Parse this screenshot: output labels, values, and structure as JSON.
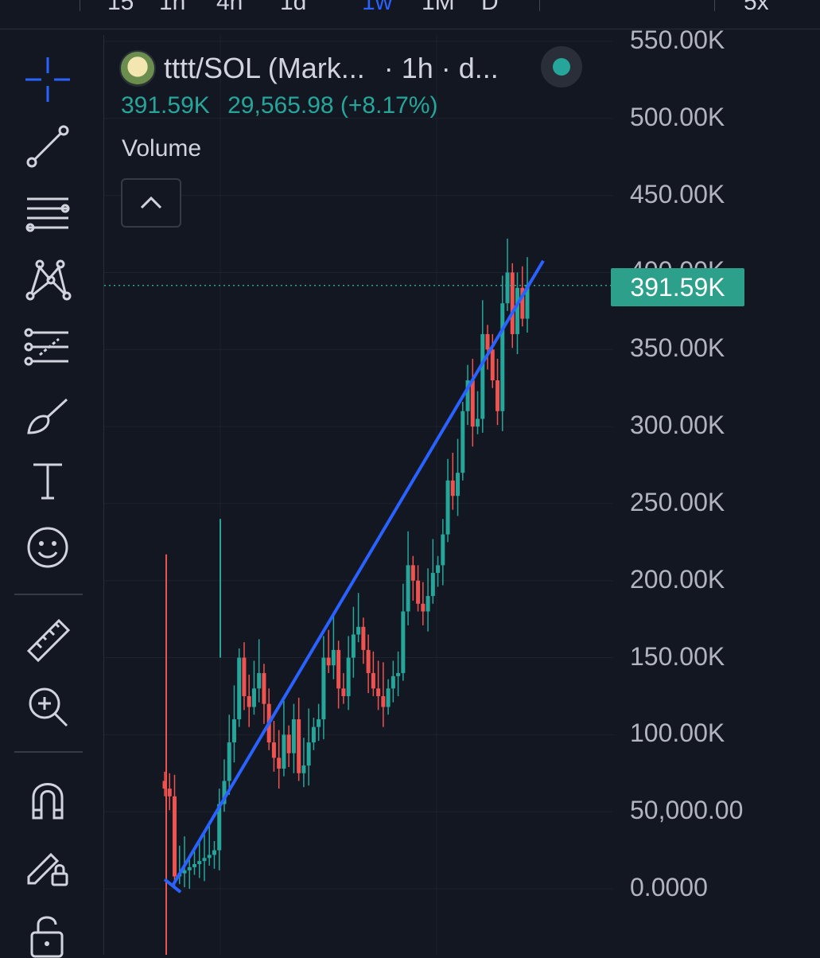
{
  "topbar": {
    "timeframes": [
      "15",
      "1h",
      "4h",
      "1d",
      "1w",
      "1M",
      "D"
    ],
    "multiplier": "5x"
  },
  "sidebar": {
    "tools": [
      {
        "name": "crosshair-icon"
      },
      {
        "name": "trend-line-icon"
      },
      {
        "name": "horizontal-lines-icon"
      },
      {
        "name": "pattern-icon"
      },
      {
        "name": "prediction-icon"
      },
      {
        "name": "brush-icon"
      },
      {
        "name": "text-icon"
      },
      {
        "name": "emoji-icon"
      },
      {
        "name": "ruler-icon"
      },
      {
        "name": "zoom-in-icon"
      },
      {
        "name": "magnet-icon"
      },
      {
        "name": "lock-drawing-icon"
      },
      {
        "name": "unlock-icon"
      }
    ]
  },
  "legend": {
    "symbol": "tttt/SOL (Mark...",
    "interval": "· 1h · d...",
    "price": "391.59K",
    "change": "29,565.98 (+8.17%)",
    "volume_label": "Volume"
  },
  "price_axis": {
    "labels": [
      "550.00K",
      "500.00K",
      "450.00K",
      "400.00K",
      "350.00K",
      "300.00K",
      "250.00K",
      "200.00K",
      "150.00K",
      "100.00K",
      "50,000.00",
      "0.0000"
    ],
    "current_price_tag": "391.59K"
  },
  "colors": {
    "up": "#26a69a",
    "down": "#ef5350",
    "trendline": "#2962ff",
    "background": "#131722",
    "grid": "#1e222d"
  },
  "chart_data": {
    "type": "candlestick",
    "y_unit": "K",
    "ylim": [
      0,
      550
    ],
    "last_price": 391.59,
    "closes": [
      65,
      60,
      8,
      10,
      12,
      14,
      16,
      18,
      20,
      22,
      25,
      55,
      70,
      95,
      110,
      150,
      125,
      118,
      130,
      140,
      120,
      95,
      85,
      78,
      100,
      88,
      110,
      75,
      80,
      95,
      105,
      110,
      150,
      145,
      155,
      130,
      125,
      150,
      165,
      170,
      155,
      140,
      130,
      125,
      118,
      130,
      138,
      140,
      180,
      210,
      200,
      185,
      180,
      190,
      205,
      210,
      230,
      265,
      255,
      270,
      310,
      330,
      300,
      305,
      360,
      350,
      330,
      310,
      380,
      400,
      360,
      390,
      370,
      392
    ],
    "trendline": {
      "from": 2,
      "to": 420
    }
  }
}
